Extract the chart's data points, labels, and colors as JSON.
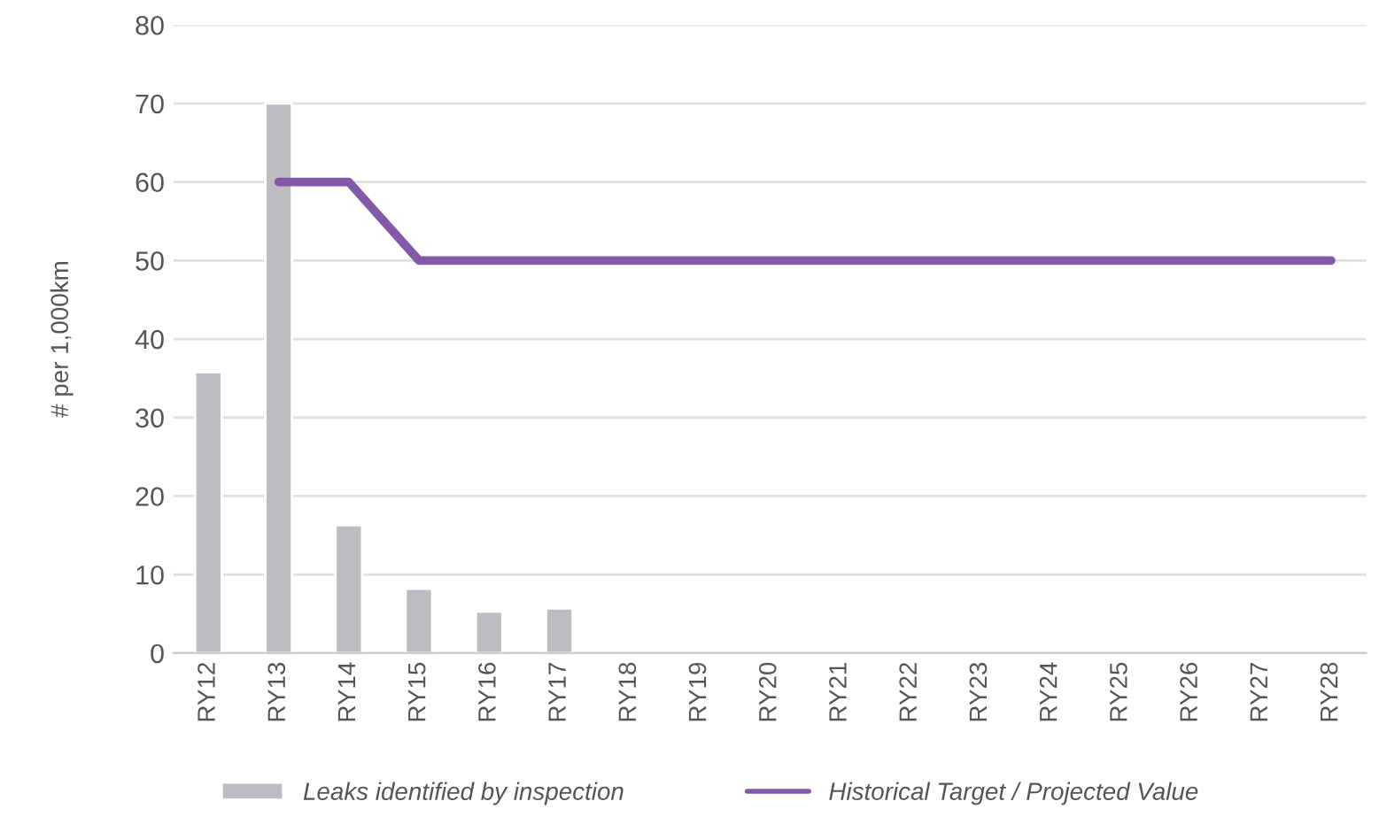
{
  "chart_data": {
    "type": "bar",
    "ylabel": "# per 1,000km",
    "categories": [
      "RY12",
      "RY13",
      "RY14",
      "RY15",
      "RY16",
      "RY17",
      "RY18",
      "RY19",
      "RY20",
      "RY21",
      "RY22",
      "RY23",
      "RY24",
      "RY25",
      "RY26",
      "RY27",
      "RY28"
    ],
    "series": [
      {
        "name": "Leaks identified by inspection",
        "color": "#bcbdc1",
        "values": [
          35.8,
          70,
          16.3,
          8.2,
          5.3,
          5.7,
          null,
          null,
          null,
          null,
          null,
          null,
          null,
          null,
          null,
          null,
          null
        ]
      },
      {
        "name": "Historical Target / Projected Value",
        "type": "line",
        "color": "#8159a8",
        "values": [
          null,
          60,
          60,
          50,
          50,
          50,
          50,
          50,
          50,
          50,
          50,
          50,
          50,
          50,
          50,
          50,
          50
        ]
      }
    ],
    "ylim": [
      0,
      80
    ],
    "yticks": [
      0,
      10,
      20,
      30,
      40,
      50,
      60,
      70,
      80
    ],
    "grid": "y",
    "legend": "bottom"
  }
}
